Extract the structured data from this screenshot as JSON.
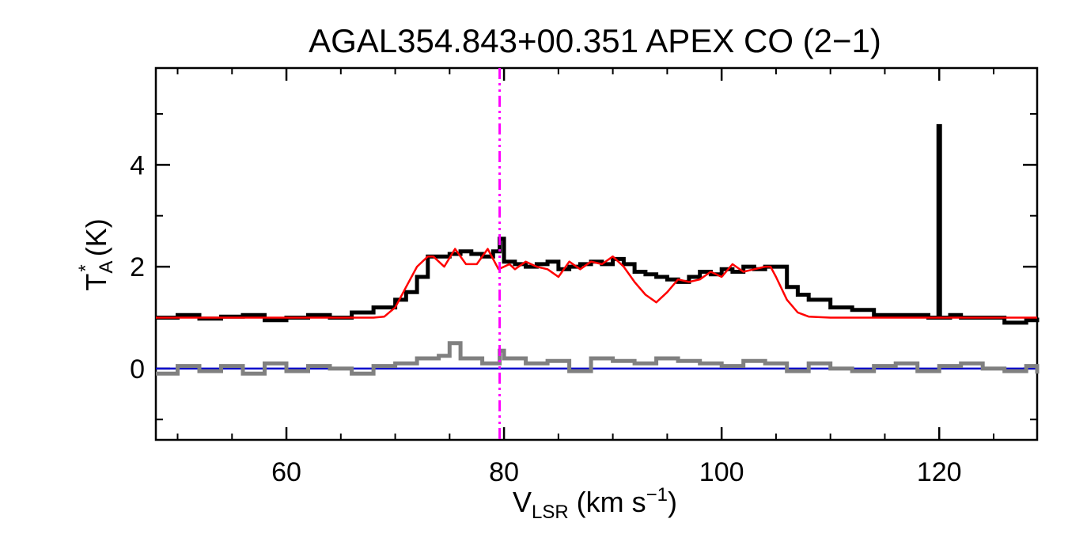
{
  "chart_data": {
    "type": "line",
    "title": "AGAL354.843+00.351   APEX CO (2−1)",
    "xlabel": {
      "main": "V",
      "sub": "LSR",
      "unit_pre": " (km s",
      "sup": "−1",
      "unit_post": ")"
    },
    "ylabel": {
      "main": "T",
      "sub": "A",
      "sup": "*",
      "unit": " (K)"
    },
    "xlim": [
      48,
      129
    ],
    "ylim": [
      -1.4,
      5.9
    ],
    "xticks": [
      60,
      80,
      100,
      120
    ],
    "yticks": [
      0,
      2,
      4
    ],
    "xtick_labels": [
      "60",
      "80",
      "100",
      "120"
    ],
    "ytick_labels": [
      "0",
      "2",
      "4"
    ],
    "grid": false,
    "marker_line": {
      "x": 79.6,
      "color": "#ff00ff",
      "style": "dash-dot-dot"
    },
    "baseline": {
      "y": 0,
      "color": "#0000cc"
    },
    "spike": {
      "x": 120.0,
      "y": 4.8
    },
    "series": [
      {
        "role": "spectrum",
        "color": "#000000",
        "x": [
          48,
          50,
          52,
          54,
          56,
          58,
          60,
          62,
          64,
          66,
          68,
          70,
          71,
          72,
          73,
          74,
          75,
          76,
          77,
          78,
          79,
          79.6,
          80,
          81,
          82,
          83,
          84,
          85,
          86,
          87,
          88,
          89,
          90,
          91,
          92,
          93,
          94,
          95,
          96,
          97,
          98,
          99,
          100,
          101,
          102,
          103,
          104,
          105,
          106,
          107,
          108,
          110,
          112,
          114,
          116,
          118,
          119,
          120,
          121,
          122,
          124,
          126,
          128,
          129
        ],
        "y": [
          1.0,
          1.05,
          0.98,
          1.02,
          1.05,
          0.95,
          1.0,
          1.05,
          1.0,
          1.1,
          1.2,
          1.35,
          1.5,
          1.8,
          2.2,
          2.2,
          2.25,
          2.3,
          2.25,
          2.2,
          2.3,
          2.55,
          2.1,
          2.05,
          2.0,
          2.05,
          2.1,
          1.95,
          2.0,
          2.05,
          2.1,
          2.05,
          2.15,
          2.05,
          1.9,
          1.85,
          1.8,
          1.75,
          1.7,
          1.8,
          1.9,
          1.85,
          1.95,
          1.9,
          2.0,
          1.95,
          2.0,
          2.0,
          1.6,
          1.45,
          1.35,
          1.2,
          1.15,
          1.05,
          1.05,
          1.05,
          1.0,
          1.0,
          1.05,
          1.0,
          1.0,
          0.9,
          0.95,
          1.0
        ]
      },
      {
        "role": "fit",
        "color": "#ff0000",
        "x": [
          48,
          66,
          68,
          69,
          70,
          71,
          72,
          73,
          73.5,
          74.5,
          75.5,
          76.5,
          77.5,
          78.5,
          79.5,
          80.5,
          81,
          82,
          83,
          84,
          85,
          86,
          87,
          88,
          89,
          90,
          91,
          92,
          93,
          94,
          95,
          96,
          97,
          98,
          99,
          100,
          101,
          102,
          103,
          104,
          104.5,
          105,
          106,
          107,
          108,
          110,
          129
        ],
        "y": [
          1.0,
          1.0,
          1.0,
          1.02,
          1.2,
          1.6,
          2.0,
          2.2,
          2.2,
          2.0,
          2.35,
          2.05,
          2.05,
          2.35,
          1.95,
          2.05,
          1.95,
          2.1,
          2.0,
          1.95,
          1.8,
          2.1,
          1.95,
          2.1,
          2.05,
          2.2,
          2.0,
          1.7,
          1.45,
          1.3,
          1.5,
          1.75,
          1.7,
          1.75,
          1.9,
          1.8,
          2.05,
          1.9,
          1.95,
          2.0,
          2.0,
          1.8,
          1.35,
          1.1,
          1.02,
          1.0,
          1.0
        ]
      },
      {
        "role": "residual",
        "color": "#808080",
        "x": [
          48,
          50,
          52,
          54,
          56,
          58,
          60,
          62,
          64,
          66,
          68,
          70,
          72,
          74,
          75,
          76,
          78,
          79.6,
          80,
          82,
          84,
          86,
          88,
          90,
          92,
          94,
          96,
          98,
          100,
          102,
          104,
          106,
          108,
          110,
          112,
          114,
          116,
          118,
          120,
          122,
          124,
          126,
          128,
          129
        ],
        "y": [
          -0.1,
          0.05,
          -0.05,
          0.05,
          -0.1,
          0.1,
          -0.05,
          0.05,
          0.0,
          -0.1,
          0.05,
          0.1,
          0.2,
          0.25,
          0.5,
          0.2,
          0.1,
          0.35,
          0.2,
          0.1,
          0.15,
          -0.05,
          0.2,
          0.15,
          0.1,
          0.2,
          0.15,
          0.1,
          0.05,
          0.15,
          0.1,
          -0.05,
          0.1,
          0.0,
          -0.05,
          0.05,
          0.1,
          -0.05,
          0.05,
          0.1,
          0.0,
          -0.05,
          0.05,
          -0.1
        ]
      }
    ]
  }
}
